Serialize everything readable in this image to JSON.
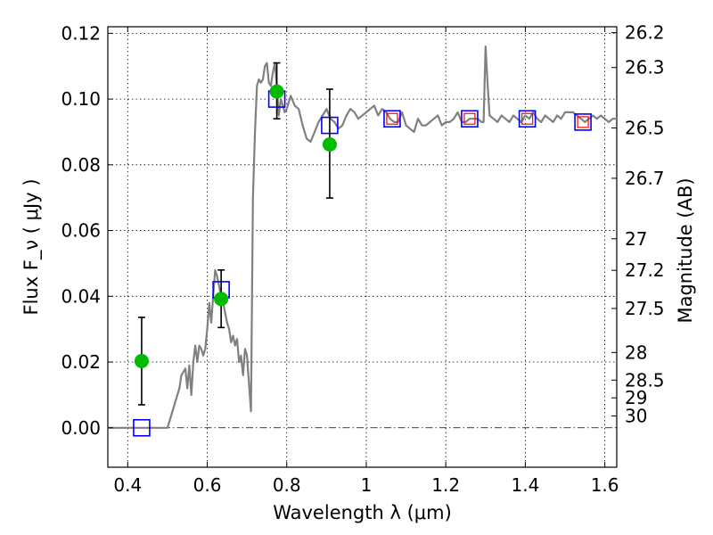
{
  "chart_data": {
    "type": "line",
    "xlabel": "Wavelength  λ (μm)",
    "ylabel": "Flux  F_ν  ( μJy )",
    "ylabel_right": "Magnitude (AB)",
    "xlim": [
      0.35,
      1.63
    ],
    "ylim": [
      -0.012,
      0.122
    ],
    "grid": true,
    "x_ticks": [
      {
        "value": 0.4,
        "label": "0.4"
      },
      {
        "value": 0.6,
        "label": "0.6"
      },
      {
        "value": 0.8,
        "label": "0.8"
      },
      {
        "value": 1.0,
        "label": "1"
      },
      {
        "value": 1.2,
        "label": "1.2"
      },
      {
        "value": 1.4,
        "label": "1.4"
      },
      {
        "value": 1.6,
        "label": "1.6"
      }
    ],
    "y_ticks": [
      {
        "value": 0.0,
        "label": "0.00"
      },
      {
        "value": 0.02,
        "label": "0.02"
      },
      {
        "value": 0.04,
        "label": "0.04"
      },
      {
        "value": 0.06,
        "label": "0.06"
      },
      {
        "value": 0.08,
        "label": "0.08"
      },
      {
        "value": 0.1,
        "label": "0.10"
      },
      {
        "value": 0.12,
        "label": "0.12"
      }
    ],
    "mag_ticks": [
      {
        "value": 0.1202,
        "label": "26.2"
      },
      {
        "value": 0.1096,
        "label": "26.3"
      },
      {
        "value": 0.0912,
        "label": "26.5"
      },
      {
        "value": 0.0759,
        "label": "26.7"
      },
      {
        "value": 0.0575,
        "label": "27"
      },
      {
        "value": 0.0479,
        "label": "27.2"
      },
      {
        "value": 0.0363,
        "label": "27.5"
      },
      {
        "value": 0.0229,
        "label": "28"
      },
      {
        "value": 0.0145,
        "label": "28.5"
      },
      {
        "value": 0.0091,
        "label": "29"
      },
      {
        "value": 0.0036,
        "label": "30"
      }
    ],
    "series": [
      {
        "type": "line",
        "color": "#808080",
        "x": [
          0.35,
          0.5,
          0.51,
          0.52,
          0.53,
          0.535,
          0.54,
          0.545,
          0.55,
          0.555,
          0.56,
          0.565,
          0.57,
          0.575,
          0.58,
          0.585,
          0.59,
          0.595,
          0.6,
          0.605,
          0.61,
          0.615,
          0.62,
          0.625,
          0.63,
          0.635,
          0.64,
          0.645,
          0.65,
          0.655,
          0.66,
          0.665,
          0.67,
          0.675,
          0.68,
          0.685,
          0.69,
          0.695,
          0.7,
          0.71,
          0.715,
          0.72,
          0.725,
          0.73,
          0.735,
          0.74,
          0.745,
          0.75,
          0.755,
          0.76,
          0.765,
          0.77,
          0.775,
          0.78,
          0.785,
          0.79,
          0.795,
          0.8,
          0.81,
          0.82,
          0.83,
          0.84,
          0.85,
          0.86,
          0.87,
          0.88,
          0.89,
          0.9,
          0.91,
          0.92,
          0.93,
          0.94,
          0.95,
          0.96,
          0.97,
          0.98,
          0.99,
          1.0,
          1.01,
          1.02,
          1.03,
          1.04,
          1.05,
          1.06,
          1.07,
          1.08,
          1.09,
          1.1,
          1.11,
          1.12,
          1.13,
          1.14,
          1.15,
          1.16,
          1.17,
          1.18,
          1.19,
          1.2,
          1.21,
          1.22,
          1.23,
          1.24,
          1.25,
          1.26,
          1.27,
          1.28,
          1.29,
          1.295,
          1.3,
          1.305,
          1.31,
          1.32,
          1.33,
          1.34,
          1.35,
          1.36,
          1.37,
          1.38,
          1.39,
          1.4,
          1.41,
          1.42,
          1.43,
          1.44,
          1.45,
          1.46,
          1.47,
          1.48,
          1.49,
          1.5,
          1.51,
          1.52,
          1.53,
          1.54,
          1.55,
          1.56,
          1.57,
          1.58,
          1.59,
          1.6,
          1.61,
          1.62,
          1.63
        ],
        "y": [
          0.0,
          0.0,
          0.004,
          0.008,
          0.012,
          0.016,
          0.017,
          0.018,
          0.012,
          0.019,
          0.01,
          0.02,
          0.025,
          0.02,
          0.025,
          0.024,
          0.022,
          0.024,
          0.03,
          0.038,
          0.032,
          0.04,
          0.048,
          0.046,
          0.043,
          0.04,
          0.038,
          0.035,
          0.032,
          0.03,
          0.026,
          0.028,
          0.025,
          0.027,
          0.02,
          0.022,
          0.016,
          0.024,
          0.022,
          0.005,
          0.07,
          0.09,
          0.104,
          0.106,
          0.105,
          0.106,
          0.11,
          0.111,
          0.105,
          0.104,
          0.108,
          0.111,
          0.104,
          0.095,
          0.1,
          0.098,
          0.096,
          0.097,
          0.101,
          0.098,
          0.097,
          0.092,
          0.088,
          0.087,
          0.09,
          0.093,
          0.095,
          0.097,
          0.094,
          0.093,
          0.091,
          0.092,
          0.095,
          0.097,
          0.096,
          0.094,
          0.095,
          0.096,
          0.097,
          0.098,
          0.095,
          0.097,
          0.096,
          0.094,
          0.093,
          0.093,
          0.096,
          0.092,
          0.091,
          0.09,
          0.094,
          0.092,
          0.092,
          0.093,
          0.094,
          0.095,
          0.092,
          0.093,
          0.093,
          0.094,
          0.096,
          0.093,
          0.093,
          0.094,
          0.094,
          0.094,
          0.093,
          0.093,
          0.116,
          0.105,
          0.095,
          0.094,
          0.093,
          0.095,
          0.094,
          0.093,
          0.095,
          0.094,
          0.093,
          0.095,
          0.094,
          0.096,
          0.094,
          0.093,
          0.095,
          0.094,
          0.093,
          0.095,
          0.094,
          0.096,
          0.096,
          0.096,
          0.095,
          0.094,
          0.093,
          0.094,
          0.095,
          0.094,
          0.095,
          0.094,
          0.093,
          0.094,
          0.094
        ]
      },
      {
        "type": "scatter",
        "marker": "square",
        "color": "#0000ff",
        "x": [
          0.435,
          0.635,
          0.775,
          0.908,
          1.065,
          1.26,
          1.405,
          1.545
        ],
        "y": [
          0.0,
          0.042,
          0.1,
          0.092,
          0.094,
          0.094,
          0.094,
          0.093
        ]
      },
      {
        "type": "scatter",
        "marker": "square",
        "color": "#ff0000",
        "x": [
          1.065,
          1.26,
          1.405,
          1.545
        ],
        "y": [
          0.094,
          0.094,
          0.094,
          0.093
        ]
      },
      {
        "type": "scatter",
        "marker": "circle",
        "color": "#00bb00",
        "x": [
          0.435,
          0.635,
          0.775,
          0.908
        ],
        "y": [
          0.0203,
          0.0392,
          0.1023,
          0.0862
        ],
        "yerr_low": [
          0.0133,
          0.0087,
          0.0083,
          0.0163
        ],
        "yerr_high": [
          0.0133,
          0.0088,
          0.0087,
          0.0168
        ]
      }
    ]
  }
}
